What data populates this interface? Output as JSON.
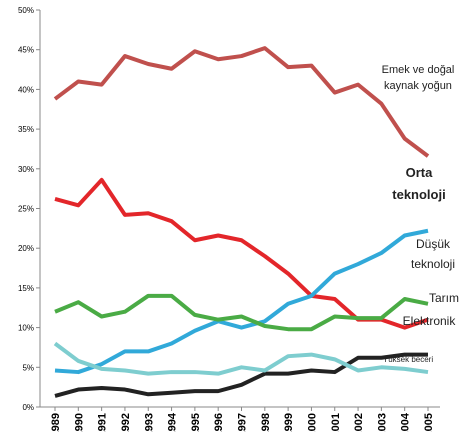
{
  "chart_data": {
    "type": "line",
    "x": [
      1989,
      1990,
      1991,
      1992,
      1993,
      1994,
      1995,
      1996,
      1997,
      1998,
      1999,
      2000,
      2001,
      2002,
      2003,
      2004,
      2005
    ],
    "ylim": [
      0,
      50
    ],
    "yticks": [
      {
        "value": 0,
        "label": "0%"
      },
      {
        "value": 5,
        "label": "5%"
      },
      {
        "value": 10,
        "label": "10%"
      },
      {
        "value": 15,
        "label": "15%"
      },
      {
        "value": 20,
        "label": "20%"
      },
      {
        "value": 25,
        "label": "25%"
      },
      {
        "value": 30,
        "label": "30%"
      },
      {
        "value": 35,
        "label": "35%"
      },
      {
        "value": 40,
        "label": "40%"
      },
      {
        "value": 45,
        "label": "45%"
      },
      {
        "value": 50,
        "label": "50%"
      }
    ],
    "series": [
      {
        "name": "Emek ve doğal kaynak yoğun",
        "color": "#c0504d",
        "values": [
          38.8,
          41,
          40.6,
          44.2,
          43.2,
          42.6,
          44.8,
          43.8,
          44.2,
          45.2,
          42.8,
          43,
          39.6,
          40.6,
          38.2,
          33.8,
          31.6
        ]
      },
      {
        "name": "Orta teknoloji",
        "color": "#e3262a",
        "values": [
          26.2,
          25.4,
          28.6,
          24.2,
          24.4,
          23.4,
          21,
          21.6,
          21,
          19,
          16.8,
          14,
          13.6,
          11,
          11,
          10,
          11
        ]
      },
      {
        "name": "Düşük teknoloji",
        "color": "#31a9d9",
        "values": [
          4.6,
          4.4,
          5.4,
          7,
          7,
          8,
          9.6,
          10.8,
          10,
          10.8,
          13,
          14,
          16.8,
          18,
          19.4,
          21.6,
          22.2
        ]
      },
      {
        "name": "Tarım",
        "color": "#4aab45",
        "values": [
          12,
          13.2,
          11.4,
          12,
          14,
          14,
          11.6,
          11,
          11.4,
          10.2,
          9.8,
          9.8,
          11.4,
          11.2,
          11.2,
          13.6,
          13
        ]
      },
      {
        "name": "Elektronik",
        "color": "#222222",
        "values": [
          1.4,
          2.2,
          2.4,
          2.2,
          1.6,
          1.8,
          2,
          2,
          2.8,
          4.2,
          4.2,
          4.6,
          4.4,
          6.2,
          6.2,
          6.6,
          6.6
        ]
      },
      {
        "name": "Yüksek beceri",
        "color": "#7ecdcf",
        "values": [
          8,
          5.8,
          4.8,
          4.6,
          4.2,
          4.4,
          4.4,
          4.2,
          5,
          4.6,
          6.4,
          6.6,
          6,
          4.6,
          5,
          4.8,
          4.4
        ]
      }
    ]
  }
}
